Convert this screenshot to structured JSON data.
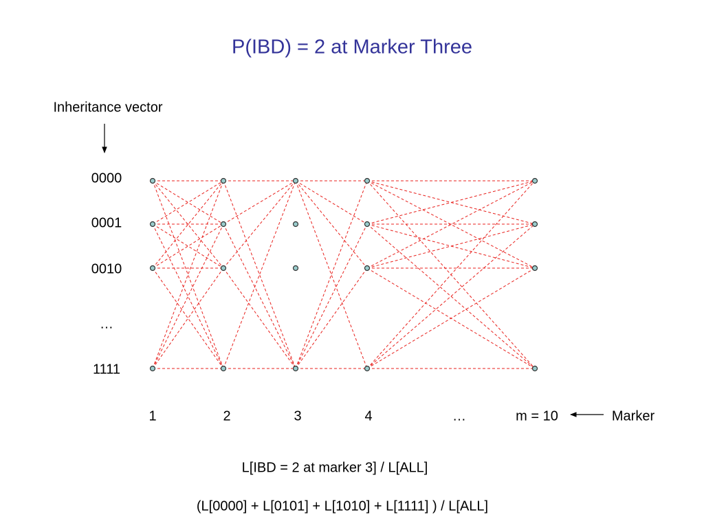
{
  "title": "P(IBD) = 2 at Marker Three",
  "vector_label": "Inheritance vector",
  "rows": [
    "0000",
    "0001",
    "0010",
    "…",
    "1111"
  ],
  "markers": [
    "1",
    "2",
    "3",
    "4",
    "…",
    "m = 10"
  ],
  "marker_label": "Marker",
  "formulas": [
    "L[IBD = 2 at marker 3] /  L[ALL]",
    "(L[0000] + L[0101] + L[1010] + L[1111] ) /  L[ALL]"
  ]
}
